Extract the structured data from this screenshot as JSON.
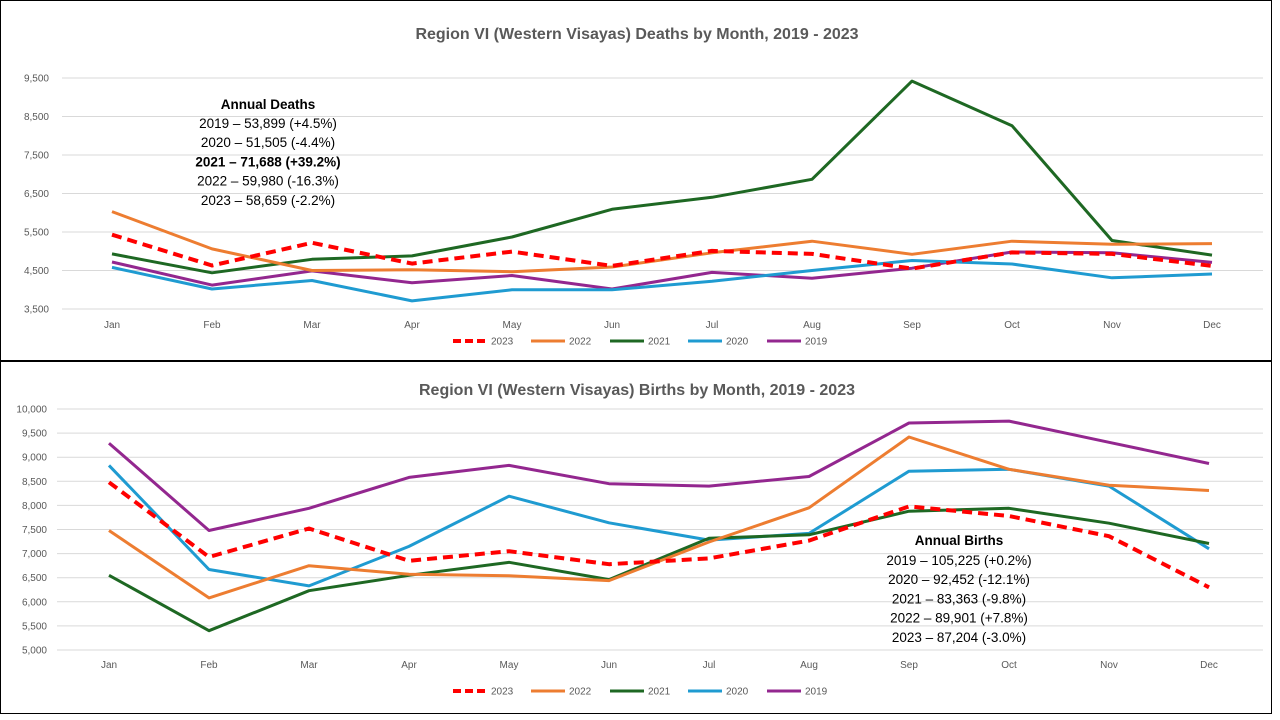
{
  "chart_data": [
    {
      "type": "line",
      "title": "Region VI (Western Visayas) Deaths by Month, 2019 - 2023",
      "xlabel": "",
      "ylabel": "",
      "categories": [
        "Jan",
        "Feb",
        "Mar",
        "Apr",
        "May",
        "Jun",
        "Jul",
        "Aug",
        "Sep",
        "Oct",
        "Nov",
        "Dec"
      ],
      "ylim": [
        3500,
        9500
      ],
      "yticks": [
        "3,500",
        "4,500",
        "5,500",
        "6,500",
        "7,500",
        "8,500",
        "9,500"
      ],
      "ytick_values": [
        3500,
        4500,
        5500,
        6500,
        7500,
        8500,
        9500
      ],
      "grid": true,
      "legend_position": "bottom",
      "series": [
        {
          "name": "2023",
          "color": "#ff0000",
          "dashed": true,
          "values": [
            5430,
            4630,
            5220,
            4680,
            4990,
            4620,
            5010,
            4930,
            4550,
            4970,
            4930,
            4620
          ]
        },
        {
          "name": "2022",
          "color": "#ed7d31",
          "dashed": false,
          "values": [
            6030,
            5060,
            4500,
            4520,
            4470,
            4590,
            4960,
            5260,
            4920,
            5260,
            5180,
            5200
          ]
        },
        {
          "name": "2021",
          "color": "#1e6823",
          "dashed": false,
          "values": [
            4930,
            4440,
            4790,
            4880,
            5370,
            6090,
            6400,
            6870,
            9420,
            8260,
            5280,
            4900
          ]
        },
        {
          "name": "2020",
          "color": "#1f9bd1",
          "dashed": false,
          "values": [
            4580,
            4020,
            4240,
            3710,
            4000,
            4000,
            4220,
            4500,
            4760,
            4670,
            4310,
            4410
          ]
        },
        {
          "name": "2019",
          "color": "#93278f",
          "dashed": false,
          "values": [
            4720,
            4120,
            4490,
            4180,
            4370,
            4020,
            4450,
            4300,
            4560,
            4980,
            4960,
            4710
          ]
        }
      ],
      "annotation": {
        "heading": "Annual Deaths",
        "lines": [
          {
            "text": "2019 – 53,899 (+4.5%)",
            "bold": false
          },
          {
            "text": "2020 – 51,505 (-4.4%)",
            "bold": false
          },
          {
            "text": "2021 – 71,688 (+39.2%)",
            "bold": true
          },
          {
            "text": "2022 – 59,980 (-16.3%)",
            "bold": false
          },
          {
            "text": "2023 – 58,659 (-2.2%)",
            "bold": false
          }
        ]
      }
    },
    {
      "type": "line",
      "title": "Region VI (Western Visayas) Births by Month, 2019 - 2023",
      "xlabel": "",
      "ylabel": "",
      "categories": [
        "Jan",
        "Feb",
        "Mar",
        "Apr",
        "May",
        "Jun",
        "Jul",
        "Aug",
        "Sep",
        "Oct",
        "Nov",
        "Dec"
      ],
      "ylim": [
        5000,
        10000
      ],
      "yticks": [
        "5,000",
        "5,500",
        "6,000",
        "6,500",
        "7,000",
        "7,500",
        "8,000",
        "8,500",
        "9,000",
        "9,500",
        "10,000"
      ],
      "ytick_values": [
        5000,
        5500,
        6000,
        6500,
        7000,
        7500,
        8000,
        8500,
        9000,
        9500,
        10000
      ],
      "grid": true,
      "legend_position": "bottom",
      "series": [
        {
          "name": "2023",
          "color": "#ff0000",
          "dashed": true,
          "values": [
            8480,
            6930,
            7520,
            6850,
            7050,
            6780,
            6900,
            7270,
            7980,
            7780,
            7360,
            6300
          ]
        },
        {
          "name": "2022",
          "color": "#ed7d31",
          "dashed": false,
          "values": [
            7480,
            6080,
            6750,
            6570,
            6540,
            6440,
            7240,
            7950,
            9420,
            8750,
            8420,
            8310
          ]
        },
        {
          "name": "2021",
          "color": "#1e6823",
          "dashed": false,
          "values": [
            6550,
            5400,
            6230,
            6550,
            6820,
            6460,
            7320,
            7390,
            7880,
            7940,
            7630,
            7210
          ]
        },
        {
          "name": "2020",
          "color": "#1f9bd1",
          "dashed": false,
          "values": [
            8830,
            6670,
            6330,
            7150,
            8190,
            7640,
            7280,
            7420,
            8710,
            8750,
            8400,
            7100
          ]
        },
        {
          "name": "2019",
          "color": "#93278f",
          "dashed": false,
          "values": [
            9290,
            7480,
            7940,
            8580,
            8830,
            8450,
            8400,
            8600,
            9710,
            9750,
            9310,
            8870
          ]
        }
      ],
      "annotation": {
        "heading": "Annual Births",
        "lines": [
          {
            "text": "2019 – 105,225 (+0.2%)",
            "bold": false
          },
          {
            "text": "2020 – 92,452 (-12.1%)",
            "bold": false
          },
          {
            "text": "2021 – 83,363 (-9.8%)",
            "bold": false
          },
          {
            "text": "2022 – 89,901 (+7.8%)",
            "bold": false
          },
          {
            "text": "2023 – 87,204 (-3.0%)",
            "bold": false
          }
        ]
      }
    }
  ]
}
